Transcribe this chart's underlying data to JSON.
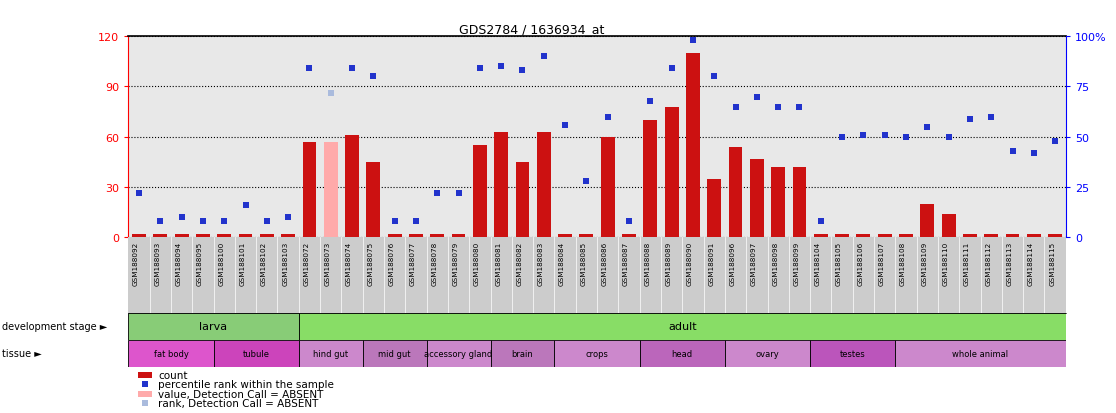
{
  "title": "GDS2784 / 1636934_at",
  "samples": [
    "GSM188092",
    "GSM188093",
    "GSM188094",
    "GSM188095",
    "GSM188100",
    "GSM188101",
    "GSM188102",
    "GSM188103",
    "GSM188072",
    "GSM188073",
    "GSM188074",
    "GSM188075",
    "GSM188076",
    "GSM188077",
    "GSM188078",
    "GSM188079",
    "GSM188080",
    "GSM188081",
    "GSM188082",
    "GSM188083",
    "GSM188084",
    "GSM188085",
    "GSM188086",
    "GSM188087",
    "GSM188088",
    "GSM188089",
    "GSM188090",
    "GSM188091",
    "GSM188096",
    "GSM188097",
    "GSM188098",
    "GSM188099",
    "GSM188104",
    "GSM188105",
    "GSM188106",
    "GSM188107",
    "GSM188108",
    "GSM188109",
    "GSM188110",
    "GSM188111",
    "GSM188112",
    "GSM188113",
    "GSM188114",
    "GSM188115"
  ],
  "count_values": [
    2,
    2,
    2,
    2,
    2,
    2,
    2,
    2,
    57,
    57,
    61,
    45,
    2,
    2,
    2,
    2,
    55,
    63,
    45,
    63,
    2,
    2,
    60,
    2,
    70,
    78,
    110,
    35,
    54,
    47,
    42,
    42,
    2,
    2,
    2,
    2,
    2,
    20,
    14,
    2,
    2,
    2,
    2,
    2
  ],
  "count_absent": [
    false,
    false,
    false,
    false,
    false,
    false,
    false,
    false,
    false,
    true,
    false,
    false,
    false,
    false,
    false,
    false,
    false,
    false,
    false,
    false,
    false,
    false,
    false,
    false,
    false,
    false,
    false,
    false,
    false,
    false,
    false,
    false,
    false,
    false,
    false,
    false,
    false,
    false,
    false,
    false,
    false,
    false,
    false,
    false
  ],
  "rank_values": [
    22,
    8,
    10,
    8,
    8,
    16,
    8,
    10,
    84,
    72,
    84,
    80,
    8,
    8,
    22,
    22,
    84,
    85,
    83,
    90,
    56,
    28,
    60,
    8,
    68,
    84,
    98,
    80,
    65,
    70,
    65,
    65,
    8,
    50,
    51,
    51,
    50,
    55,
    50,
    59,
    60,
    43,
    42,
    48
  ],
  "rank_absent": [
    false,
    false,
    false,
    false,
    false,
    false,
    false,
    false,
    false,
    true,
    false,
    false,
    false,
    false,
    false,
    false,
    false,
    false,
    false,
    false,
    false,
    false,
    false,
    false,
    false,
    false,
    false,
    false,
    false,
    false,
    false,
    false,
    false,
    false,
    false,
    false,
    false,
    false,
    false,
    false,
    false,
    false,
    false,
    false
  ],
  "development_stage": [
    {
      "label": "larva",
      "start": 0,
      "end": 8
    },
    {
      "label": "adult",
      "start": 8,
      "end": 44
    }
  ],
  "tissue_groups": [
    {
      "label": "fat body",
      "start": 0,
      "end": 4
    },
    {
      "label": "tubule",
      "start": 4,
      "end": 8
    },
    {
      "label": "hind gut",
      "start": 8,
      "end": 11
    },
    {
      "label": "mid gut",
      "start": 11,
      "end": 14
    },
    {
      "label": "accessory gland",
      "start": 14,
      "end": 17
    },
    {
      "label": "brain",
      "start": 17,
      "end": 20
    },
    {
      "label": "crops",
      "start": 20,
      "end": 24
    },
    {
      "label": "head",
      "start": 24,
      "end": 28
    },
    {
      "label": "ovary",
      "start": 28,
      "end": 32
    },
    {
      "label": "testes",
      "start": 32,
      "end": 36
    },
    {
      "label": "whole animal",
      "start": 36,
      "end": 44
    }
  ],
  "dev_colors": {
    "larva": "#88cc77",
    "adult": "#88dd66"
  },
  "tissue_colors": [
    "#dd55cc",
    "#cc44bb",
    "#cc88cc",
    "#bb77bb",
    "#cc88cc",
    "#bb77bb",
    "#cc88cc",
    "#bb66bb",
    "#cc88cc",
    "#bb55bb",
    "#cc88cc"
  ],
  "left_ylim": [
    0,
    120
  ],
  "right_ylim": [
    0,
    100
  ],
  "left_yticks": [
    0,
    30,
    60,
    90,
    120
  ],
  "right_yticks": [
    0,
    25,
    50,
    75,
    100
  ],
  "bar_color_present": "#cc1111",
  "bar_color_absent": "#ffaaaa",
  "dot_color_present": "#2233cc",
  "dot_color_absent": "#aabbdd",
  "plot_bg": "#e8e8e8",
  "xtick_bg": "#cccccc"
}
